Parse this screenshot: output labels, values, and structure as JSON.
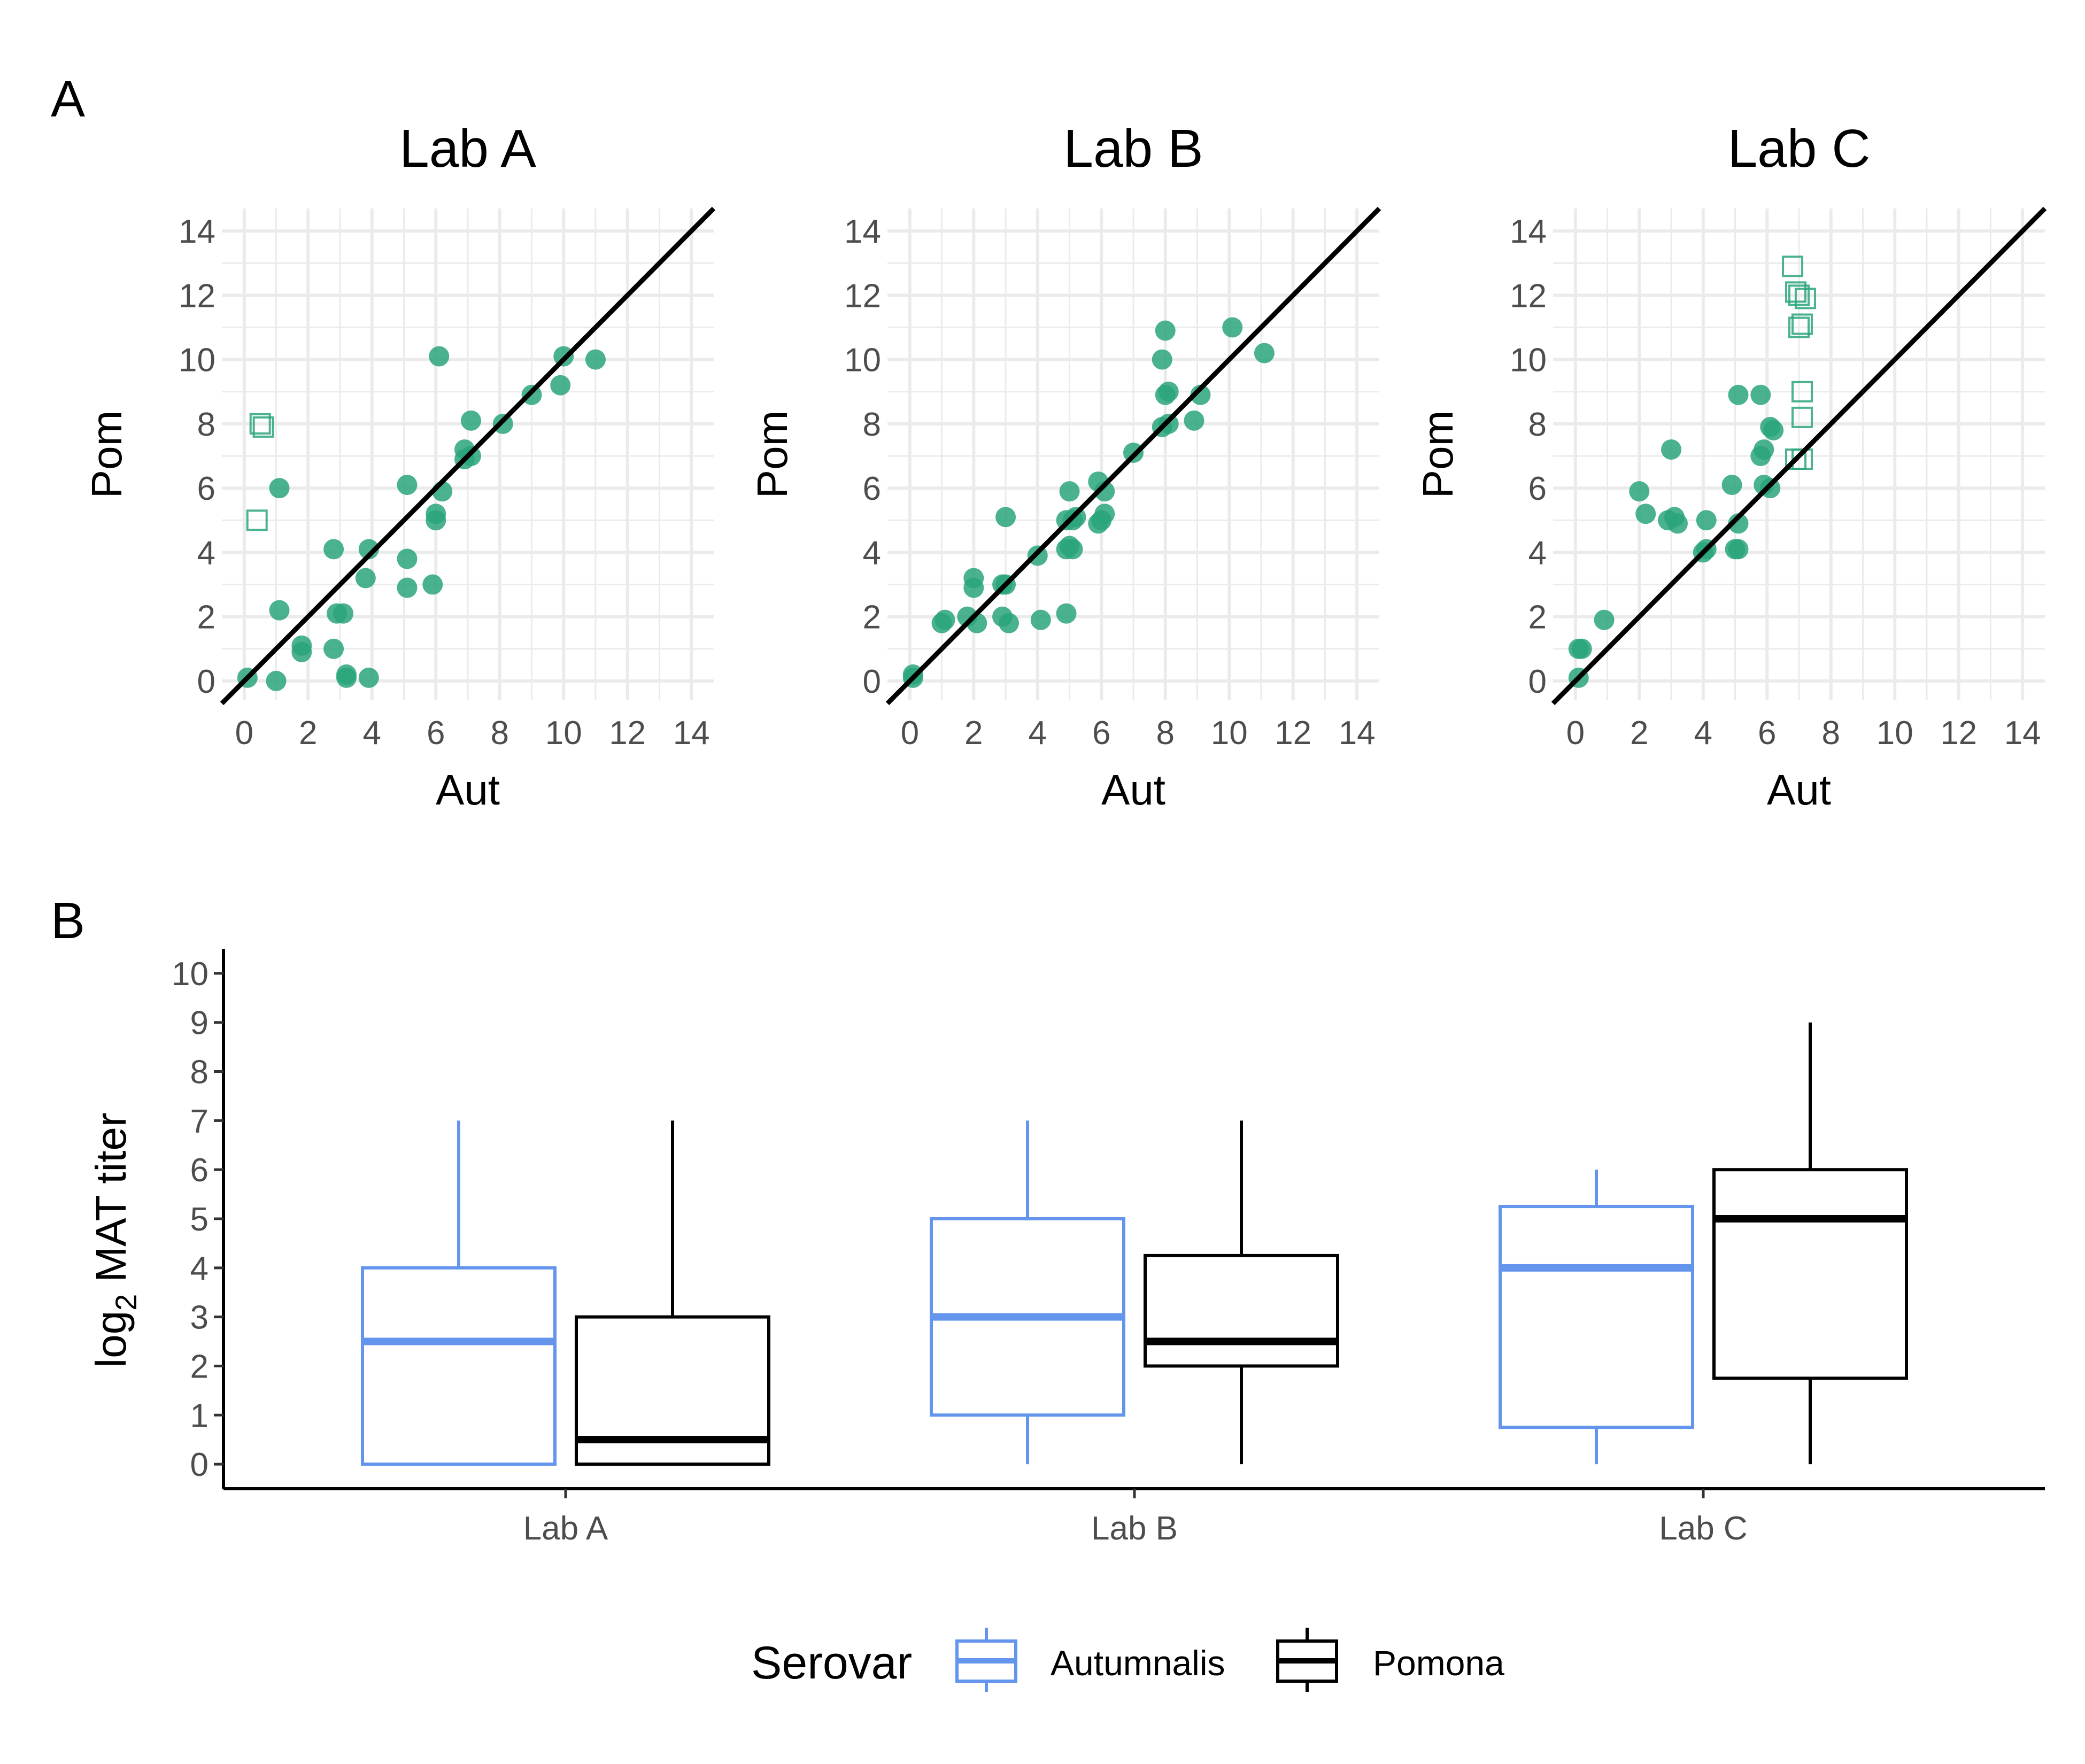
{
  "panels": {
    "a_label": "A",
    "b_label": "B"
  },
  "colors": {
    "point": "#2aa57a",
    "autumnalis": "#6495ed",
    "pomona": "#000000",
    "grid": "#ebebeb",
    "tick_text": "#4d4d4d"
  },
  "chart_data": [
    {
      "type": "scatter",
      "title": "Lab A",
      "xlabel": "Aut",
      "ylabel": "Pom",
      "xlim": [
        0,
        14
      ],
      "ylim": [
        0,
        14
      ],
      "ticks": [
        0,
        2,
        4,
        6,
        8,
        10,
        12,
        14
      ],
      "reference_line": "y = x",
      "grid": true,
      "points": [
        [
          0.1,
          0.1
        ],
        [
          1.0,
          0.0
        ],
        [
          1.8,
          0.9
        ],
        [
          1.8,
          1.1
        ],
        [
          2.8,
          1.0
        ],
        [
          3.2,
          0.2
        ],
        [
          3.2,
          0.1
        ],
        [
          3.9,
          0.1
        ],
        [
          1.1,
          2.2
        ],
        [
          2.9,
          2.1
        ],
        [
          3.1,
          2.1
        ],
        [
          2.8,
          4.1
        ],
        [
          3.8,
          3.2
        ],
        [
          3.9,
          4.1
        ],
        [
          1.1,
          6.0
        ],
        [
          5.1,
          2.9
        ],
        [
          5.1,
          3.8
        ],
        [
          5.9,
          3.0
        ],
        [
          5.1,
          6.1
        ],
        [
          6.0,
          5.0
        ],
        [
          6.0,
          5.2
        ],
        [
          6.2,
          5.9
        ],
        [
          6.9,
          6.9
        ],
        [
          6.9,
          7.2
        ],
        [
          7.1,
          7.0
        ],
        [
          7.1,
          8.1
        ],
        [
          8.1,
          8.0
        ],
        [
          6.1,
          10.1
        ],
        [
          9.0,
          8.9
        ],
        [
          9.9,
          9.2
        ],
        [
          10.0,
          10.1
        ],
        [
          11.0,
          10.0
        ]
      ],
      "open_points": [
        [
          0.5,
          8.0
        ],
        [
          0.6,
          7.9
        ],
        [
          0.4,
          5.0
        ]
      ]
    },
    {
      "type": "scatter",
      "title": "Lab B",
      "xlabel": "Aut",
      "ylabel": "Pom",
      "xlim": [
        0,
        14
      ],
      "ylim": [
        0,
        14
      ],
      "ticks": [
        0,
        2,
        4,
        6,
        8,
        10,
        12,
        14
      ],
      "reference_line": "y = x",
      "grid": true,
      "points": [
        [
          0.1,
          0.1
        ],
        [
          0.1,
          0.2
        ],
        [
          1.0,
          1.8
        ],
        [
          1.1,
          1.9
        ],
        [
          1.8,
          2.0
        ],
        [
          2.1,
          1.8
        ],
        [
          2.0,
          2.9
        ],
        [
          2.0,
          3.2
        ],
        [
          2.9,
          2.0
        ],
        [
          3.1,
          1.8
        ],
        [
          2.9,
          3.0
        ],
        [
          3.0,
          3.0
        ],
        [
          3.0,
          5.1
        ],
        [
          4.0,
          3.9
        ],
        [
          4.1,
          1.9
        ],
        [
          4.9,
          2.1
        ],
        [
          4.9,
          4.1
        ],
        [
          5.0,
          4.2
        ],
        [
          5.1,
          4.1
        ],
        [
          4.9,
          5.0
        ],
        [
          5.1,
          5.0
        ],
        [
          5.2,
          5.1
        ],
        [
          5.0,
          5.9
        ],
        [
          5.9,
          4.9
        ],
        [
          6.0,
          5.0
        ],
        [
          6.1,
          5.2
        ],
        [
          5.9,
          6.2
        ],
        [
          6.1,
          5.9
        ],
        [
          7.0,
          7.1
        ],
        [
          7.9,
          7.9
        ],
        [
          8.1,
          8.0
        ],
        [
          8.0,
          8.9
        ],
        [
          8.1,
          9.0
        ],
        [
          7.9,
          10.0
        ],
        [
          8.0,
          10.9
        ],
        [
          8.9,
          8.1
        ],
        [
          9.1,
          8.9
        ],
        [
          10.1,
          11.0
        ],
        [
          11.1,
          10.2
        ]
      ],
      "open_points": []
    },
    {
      "type": "scatter",
      "title": "Lab C",
      "xlabel": "Aut",
      "ylabel": "Pom",
      "xlim": [
        0,
        14
      ],
      "ylim": [
        0,
        14
      ],
      "ticks": [
        0,
        2,
        4,
        6,
        8,
        10,
        12,
        14
      ],
      "reference_line": "y = x",
      "grid": true,
      "points": [
        [
          0.1,
          0.1
        ],
        [
          0.1,
          1.0
        ],
        [
          0.2,
          1.0
        ],
        [
          0.9,
          1.9
        ],
        [
          2.0,
          5.9
        ],
        [
          2.2,
          5.2
        ],
        [
          2.9,
          5.0
        ],
        [
          3.0,
          7.2
        ],
        [
          3.1,
          5.1
        ],
        [
          3.2,
          4.9
        ],
        [
          4.0,
          4.0
        ],
        [
          4.1,
          5.0
        ],
        [
          4.1,
          4.1
        ],
        [
          4.9,
          6.1
        ],
        [
          5.0,
          4.1
        ],
        [
          5.1,
          4.1
        ],
        [
          5.1,
          4.9
        ],
        [
          5.1,
          8.9
        ],
        [
          5.8,
          7.0
        ],
        [
          5.8,
          8.9
        ],
        [
          5.9,
          7.2
        ],
        [
          5.9,
          6.1
        ],
        [
          6.1,
          7.9
        ],
        [
          6.1,
          6.0
        ],
        [
          6.2,
          7.8
        ]
      ],
      "open_points": [
        [
          6.8,
          12.9
        ],
        [
          6.9,
          12.1
        ],
        [
          7.0,
          11.0
        ],
        [
          7.1,
          11.1
        ],
        [
          7.0,
          12.0
        ],
        [
          7.2,
          11.9
        ],
        [
          7.1,
          9.0
        ],
        [
          7.1,
          8.2
        ],
        [
          6.9,
          6.9
        ],
        [
          7.1,
          6.9
        ]
      ]
    },
    {
      "type": "box",
      "ylabel": "log2 MAT titer",
      "ylabel_main": "log",
      "ylabel_sub": "2",
      "ylabel_rest": " MAT titer",
      "ylim": [
        0,
        10
      ],
      "yticks": [
        0,
        1,
        2,
        3,
        4,
        5,
        6,
        7,
        8,
        9,
        10
      ],
      "categories": [
        "Lab A",
        "Lab B",
        "Lab C"
      ],
      "legend": {
        "title": "Serovar",
        "position": "bottom"
      },
      "series": [
        {
          "name": "Autumnalis",
          "boxes": [
            {
              "min": 0,
              "q1": 0,
              "median": 2.5,
              "q3": 4,
              "max": 7
            },
            {
              "min": 0,
              "q1": 1,
              "median": 3,
              "q3": 5,
              "max": 7
            },
            {
              "min": 0,
              "q1": 0.75,
              "median": 4,
              "q3": 5.25,
              "max": 6
            }
          ]
        },
        {
          "name": "Pomona",
          "boxes": [
            {
              "min": 0,
              "q1": 0,
              "median": 0.5,
              "q3": 3,
              "max": 7
            },
            {
              "min": 0,
              "q1": 2,
              "median": 2.5,
              "q3": 4.25,
              "max": 7
            },
            {
              "min": 0,
              "q1": 1.75,
              "median": 5,
              "q3": 6,
              "max": 9
            }
          ]
        }
      ]
    }
  ]
}
